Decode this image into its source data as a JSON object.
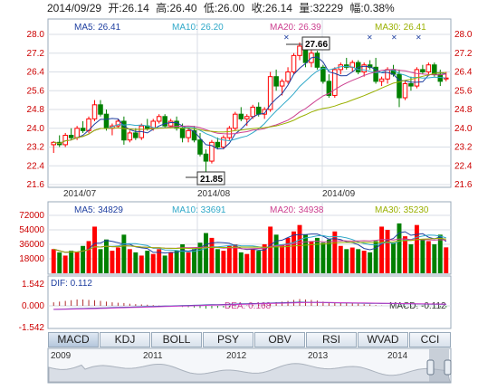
{
  "header": {
    "date": "2014/09/29",
    "open_label": "开:",
    "open": "26.14",
    "high_label": "高:",
    "high": "26.40",
    "low_label": "低:",
    "low": "26.00",
    "close_label": "收:",
    "close": "26.14",
    "volume_label": "量:",
    "volume": "32229",
    "change_label": "幅:",
    "change": "0.38%"
  },
  "colors": {
    "up": "#ff0000",
    "down": "#008000",
    "ma5": "#1f3fa0",
    "ma10": "#2fa8c8",
    "ma20": "#cc3f8f",
    "ma30": "#9ab000",
    "grid": "#d8dde6",
    "frame": "#9aa8b8"
  },
  "price_panel": {
    "ma5_label": "MA5: 26.41",
    "ma10_label": "MA10: 26.20",
    "ma20_label": "MA20: 26.39",
    "ma30_label": "MA30: 26.41",
    "high_marker": "27.66",
    "low_marker": "21.85",
    "x_labels": [
      "2014/07",
      "2014/08",
      "2014/09"
    ]
  },
  "volume_panel": {
    "ma5_label": "MA5: 34829",
    "ma10_label": "MA10: 33691",
    "ma20_label": "MA20: 34938",
    "ma30_label": "MA30: 35230"
  },
  "macd_panel": {
    "dif_label": "DIF: 0.112",
    "dea_label": "DEA: 0.168",
    "macd_label": "MACD: -0.112"
  },
  "tabs": [
    "MACD",
    "KDJ",
    "BOLL",
    "PSY",
    "OBV",
    "RSI",
    "WVAD",
    "CCI"
  ],
  "navigator": {
    "years": [
      "2009",
      "2011",
      "2012",
      "2013",
      "2014"
    ]
  },
  "chart_data": [
    {
      "type": "candlestick",
      "name": "price",
      "ylim": [
        21.6,
        28.0
      ],
      "y_ticks": [
        "28.0",
        "27.2",
        "26.4",
        "25.6",
        "24.8",
        "24.0",
        "23.2",
        "22.4",
        "21.6"
      ],
      "candles": [
        [
          23.3,
          23.45,
          22.95,
          23.4
        ],
        [
          23.4,
          23.7,
          23.2,
          23.3
        ],
        [
          23.3,
          23.8,
          23.2,
          23.7
        ],
        [
          23.7,
          24.0,
          23.5,
          23.6
        ],
        [
          23.6,
          24.1,
          23.5,
          24.0
        ],
        [
          24.0,
          24.3,
          23.8,
          23.9
        ],
        [
          23.9,
          24.5,
          23.8,
          24.4
        ],
        [
          24.4,
          25.2,
          24.3,
          25.0
        ],
        [
          25.0,
          25.2,
          24.5,
          24.6
        ],
        [
          24.6,
          24.8,
          23.9,
          24.0
        ],
        [
          24.0,
          24.2,
          23.7,
          24.1
        ],
        [
          24.1,
          24.4,
          24.0,
          24.3
        ],
        [
          24.3,
          24.5,
          23.3,
          23.5
        ],
        [
          23.5,
          23.9,
          23.4,
          23.8
        ],
        [
          23.8,
          24.0,
          23.5,
          23.6
        ],
        [
          23.6,
          24.2,
          23.5,
          24.1
        ],
        [
          24.1,
          24.4,
          23.9,
          24.0
        ],
        [
          24.0,
          24.4,
          23.9,
          24.3
        ],
        [
          24.3,
          24.6,
          24.2,
          24.5
        ],
        [
          24.5,
          24.6,
          24.0,
          24.1
        ],
        [
          24.1,
          24.4,
          24.0,
          24.3
        ],
        [
          24.3,
          24.5,
          23.9,
          24.0
        ],
        [
          24.0,
          24.2,
          23.4,
          23.6
        ],
        [
          23.6,
          24.0,
          23.4,
          23.9
        ],
        [
          23.9,
          24.1,
          23.4,
          23.5
        ],
        [
          23.5,
          23.8,
          22.8,
          22.9
        ],
        [
          22.9,
          23.1,
          21.85,
          22.6
        ],
        [
          22.6,
          23.5,
          22.5,
          23.4
        ],
        [
          23.4,
          23.6,
          23.1,
          23.2
        ],
        [
          23.2,
          23.7,
          23.1,
          23.6
        ],
        [
          23.6,
          24.1,
          23.5,
          24.0
        ],
        [
          24.0,
          24.7,
          23.9,
          24.6
        ],
        [
          24.6,
          24.9,
          24.3,
          24.4
        ],
        [
          24.4,
          24.6,
          24.1,
          24.5
        ],
        [
          24.5,
          25.0,
          24.4,
          24.9
        ],
        [
          24.9,
          25.1,
          24.5,
          24.6
        ],
        [
          24.6,
          24.9,
          24.4,
          24.8
        ],
        [
          24.8,
          26.4,
          24.7,
          26.2
        ],
        [
          26.2,
          26.5,
          25.6,
          25.8
        ],
        [
          25.8,
          26.1,
          25.4,
          26.0
        ],
        [
          26.0,
          26.6,
          25.9,
          26.4
        ],
        [
          26.4,
          27.2,
          26.3,
          27.1
        ],
        [
          27.1,
          27.66,
          26.9,
          27.5
        ],
        [
          27.5,
          27.6,
          26.6,
          26.8
        ],
        [
          26.8,
          27.4,
          26.6,
          27.2
        ],
        [
          27.2,
          27.3,
          26.5,
          26.6
        ],
        [
          26.6,
          26.7,
          25.9,
          26.0
        ],
        [
          26.0,
          26.3,
          25.3,
          25.4
        ],
        [
          25.4,
          26.6,
          25.3,
          26.5
        ],
        [
          26.5,
          26.8,
          26.3,
          26.7
        ],
        [
          26.7,
          27.0,
          26.5,
          26.6
        ],
        [
          26.6,
          26.9,
          26.4,
          26.8
        ],
        [
          26.8,
          26.9,
          26.3,
          26.4
        ],
        [
          26.4,
          26.8,
          26.2,
          26.7
        ],
        [
          26.7,
          26.9,
          26.5,
          26.6
        ],
        [
          26.6,
          27.0,
          25.9,
          26.0
        ],
        [
          26.0,
          26.2,
          25.8,
          26.1
        ],
        [
          26.1,
          26.6,
          25.9,
          26.5
        ],
        [
          26.5,
          26.7,
          26.2,
          26.3
        ],
        [
          26.3,
          26.5,
          24.9,
          25.3
        ],
        [
          25.3,
          26.0,
          25.2,
          25.9
        ],
        [
          25.9,
          26.2,
          25.6,
          25.8
        ],
        [
          25.8,
          26.6,
          25.7,
          26.5
        ],
        [
          26.5,
          26.7,
          26.3,
          26.4
        ],
        [
          26.4,
          26.8,
          26.3,
          26.7
        ],
        [
          26.7,
          26.8,
          26.2,
          26.3
        ],
        [
          26.3,
          26.5,
          25.8,
          26.0
        ],
        [
          26.14,
          26.4,
          26.0,
          26.14
        ]
      ]
    },
    {
      "type": "bar",
      "name": "volume",
      "ylim": [
        0,
        72000
      ],
      "y_ticks": [
        "72000",
        "54000",
        "36000",
        "18000"
      ],
      "values": [
        30000,
        26000,
        22000,
        28000,
        26000,
        34000,
        40000,
        58000,
        30000,
        42000,
        28000,
        32000,
        48000,
        30000,
        26000,
        22000,
        28000,
        24000,
        30000,
        22000,
        26000,
        28000,
        36000,
        26000,
        30000,
        38000,
        50000,
        44000,
        30000,
        28000,
        34000,
        36000,
        26000,
        24000,
        30000,
        28000,
        36000,
        58000,
        48000,
        36000,
        44000,
        52000,
        60000,
        48000,
        40000,
        44000,
        38000,
        42000,
        52000,
        34000,
        30000,
        32000,
        30000,
        28000,
        26000,
        40000,
        58000,
        54000,
        38000,
        62000,
        46000,
        36000,
        60000,
        42000,
        40000,
        36000,
        48000,
        32229
      ],
      "up": [
        1,
        0,
        1,
        0,
        1,
        0,
        1,
        1,
        0,
        0,
        1,
        1,
        0,
        1,
        0,
        1,
        0,
        1,
        1,
        0,
        1,
        0,
        0,
        1,
        0,
        0,
        0,
        1,
        0,
        1,
        1,
        1,
        0,
        1,
        1,
        0,
        1,
        1,
        0,
        1,
        1,
        1,
        1,
        0,
        1,
        0,
        0,
        0,
        1,
        1,
        0,
        1,
        0,
        1,
        0,
        0,
        1,
        1,
        0,
        0,
        1,
        0,
        1,
        0,
        1,
        0,
        0,
        1
      ]
    },
    {
      "type": "bar",
      "name": "macd",
      "ylim": [
        -1.542,
        1.542
      ],
      "y_ticks": [
        "1.542",
        "0.000",
        "-1.542"
      ],
      "values": [
        0.25,
        0.3,
        0.35,
        0.4,
        0.45,
        0.45,
        0.42,
        0.4,
        0.35,
        0.3,
        0.25,
        0.22,
        0.2,
        0.15,
        0.12,
        0.1,
        0.08,
        0.05,
        0.02,
        0.0,
        -0.02,
        -0.05,
        -0.08,
        -0.1,
        -0.12,
        -0.15,
        -0.2,
        -0.18,
        -0.15,
        -0.12,
        -0.08,
        -0.04,
        0.0,
        0.03,
        0.06,
        0.1,
        0.14,
        0.22,
        0.26,
        0.3,
        0.35,
        0.42,
        0.48,
        0.45,
        0.42,
        0.38,
        0.3,
        0.22,
        0.24,
        0.22,
        0.2,
        0.18,
        0.15,
        0.12,
        0.1,
        0.05,
        0.02,
        0.0,
        -0.02,
        -0.08,
        -0.06,
        -0.08,
        -0.05,
        -0.06,
        -0.05,
        -0.08,
        -0.1,
        -0.112
      ]
    }
  ]
}
